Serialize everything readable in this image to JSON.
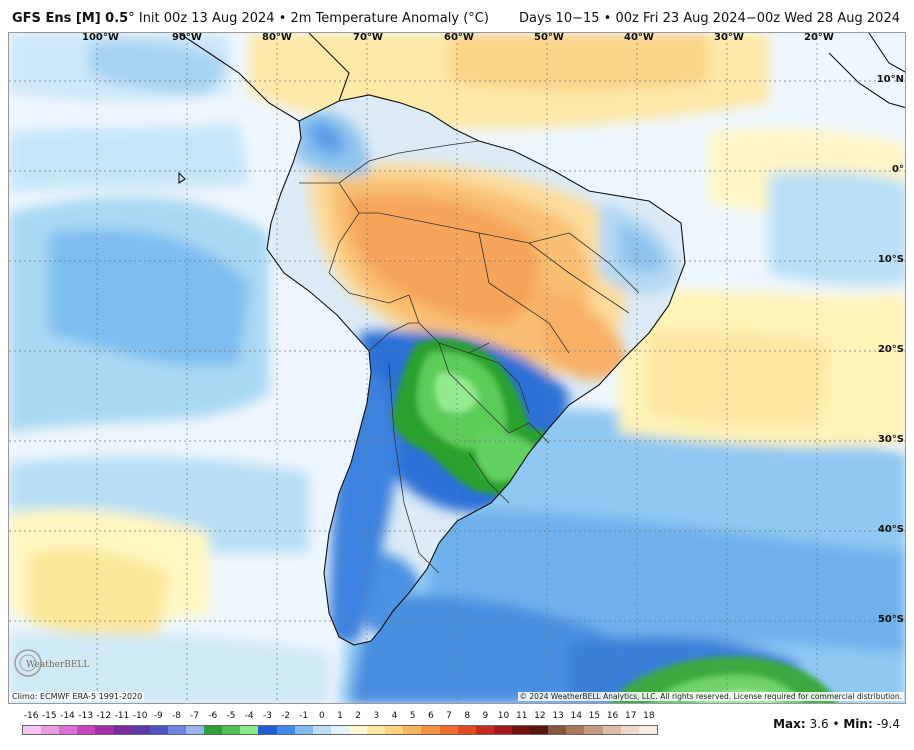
{
  "header": {
    "model": "GFS Ens [M] 0.5",
    "degree_mark": "°",
    "init": "Init 00z 13 Aug 2024",
    "separator": "•",
    "field": "2m Temperature Anomaly (°C)",
    "valid": "Days 10−15 • 00z Fri 23 Aug 2024−00z Wed 28 Aug 2024"
  },
  "map": {
    "longitude_labels": [
      "100°W",
      "90°W",
      "80°W",
      "70°W",
      "60°W",
      "50°W",
      "40°W",
      "30°W",
      "20°W"
    ],
    "latitude_labels": [
      "10°N",
      "0°",
      "10°S",
      "20°S",
      "30°S",
      "40°S",
      "50°S"
    ],
    "region": "South America",
    "max_anomaly_region": "central Brazil / Bolivia (warm, orange)",
    "min_anomaly_region": "Paraguay / northern Argentina / Uruguay (cold, green)"
  },
  "footer": {
    "climo": "Climo: ECMWF ERA-5 1991-2020",
    "copyright": "© 2024 WeatherBELL Analytics, LLC. All rights reserved. License required for commercial distribution.",
    "logo_text": "WeatherBELL"
  },
  "legend": {
    "ticks": [
      "-16",
      "-15",
      "-14",
      "-13",
      "-12",
      "-11",
      "-10",
      "-9",
      "-8",
      "-7",
      "-6",
      "-5",
      "-4",
      "-3",
      "-2",
      "-1",
      "0",
      "1",
      "2",
      "3",
      "4",
      "5",
      "6",
      "7",
      "8",
      "9",
      "10",
      "11",
      "12",
      "13",
      "14",
      "15",
      "16",
      "17",
      "18"
    ],
    "colors": [
      "#f7c6f0",
      "#e99be2",
      "#d96fd3",
      "#c745c3",
      "#a72ca4",
      "#7a2a9a",
      "#5b3aa8",
      "#4f52c2",
      "#6c83e0",
      "#9ab4f0",
      "#2e9e35",
      "#4fc24f",
      "#8be88b",
      "#1f5fd1",
      "#3f8ae6",
      "#7fb9f0",
      "#b9dcf7",
      "#e6f2fb",
      "#fff8d0",
      "#fde9a3",
      "#fbd37a",
      "#f8b45a",
      "#f4923f",
      "#ee6f2c",
      "#e14a22",
      "#c52a1c",
      "#a3181a",
      "#7a0f12",
      "#5a1414",
      "#86563a",
      "#a77757",
      "#c49a7e",
      "#dbbca5",
      "#ecdacb",
      "#f6ece3"
    ]
  },
  "stats": {
    "max_label": "Max:",
    "max_value": "3.6",
    "separator": "•",
    "min_label": "Min:",
    "min_value": "-9.4"
  }
}
